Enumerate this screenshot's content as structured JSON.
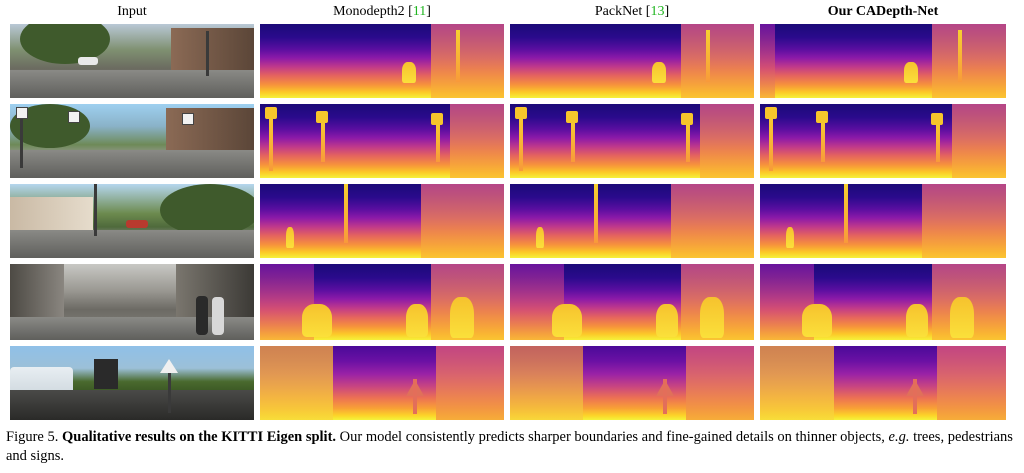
{
  "columns": [
    {
      "label": "Input",
      "ref": ""
    },
    {
      "label": "Monodepth2 [",
      "ref": "11",
      "suffix": "]"
    },
    {
      "label": "PackNet [",
      "ref": "13",
      "suffix": "]"
    },
    {
      "label": "Our CADepth-Net",
      "ref": ""
    }
  ],
  "caption": {
    "figure_label": "Figure 5.",
    "bold_title": "Qualitative results on the KITTI Eigen split.",
    "text_part1": "Our model consistently predicts sharper boundaries and fine-gained details on thinner objects,",
    "eg": "e.g.",
    "text_part2": "trees, pedestrians and signs."
  },
  "rows": 5,
  "colormap": "plasma"
}
